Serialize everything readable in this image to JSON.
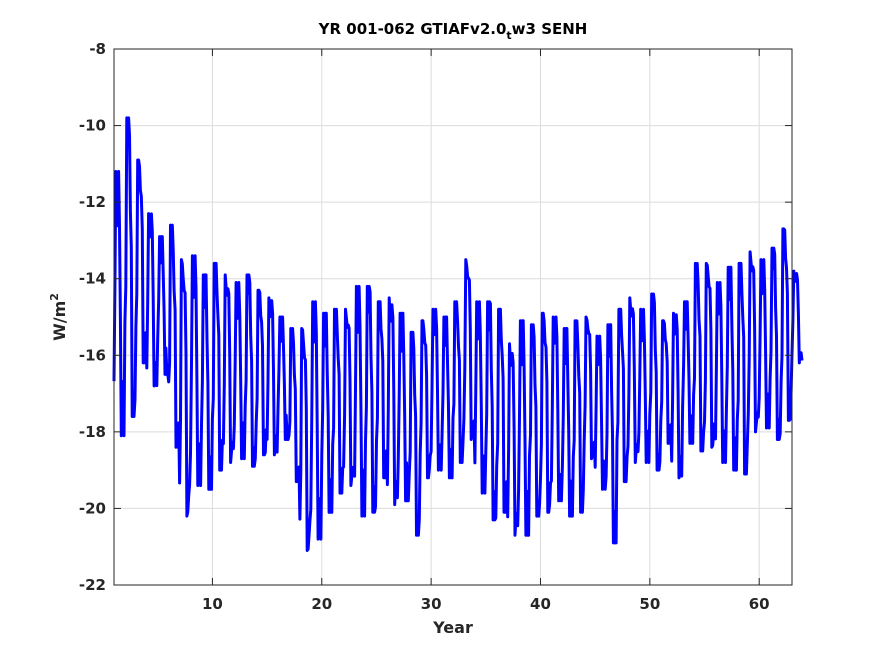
{
  "chart_data": {
    "type": "line",
    "title": "YR 001-062 GTIAFv2.0",
    "title_subscript": "t",
    "title_suffix": "w3 SENH",
    "xlabel": "Year",
    "ylabel_base": "W/m",
    "ylabel_sup": "2",
    "xlim": [
      1,
      63
    ],
    "ylim": [
      -22,
      -8
    ],
    "xticks": [
      10,
      20,
      30,
      40,
      50,
      60
    ],
    "yticks": [
      -8,
      -10,
      -12,
      -14,
      -16,
      -18,
      -20,
      -22
    ],
    "grid": true,
    "line_color": "#0000ff",
    "series": [
      {
        "annual_low": [
          -18.1,
          -17.6,
          -16.2,
          -16.8,
          -16.5,
          -18.4,
          -20.2,
          -19.4,
          -19.5,
          -19.0,
          -18.8,
          -18.7,
          -18.9,
          -18.6,
          -18.6,
          -18.2,
          -19.3,
          -21.1,
          -20.8,
          -20.1,
          -19.6,
          -19.4,
          -20.2,
          -20.1,
          -19.2,
          -19.9,
          -19.8,
          -20.7,
          -19.2,
          -19.0,
          -19.2,
          -18.8,
          -18.2,
          -19.6,
          -20.3,
          -20.1,
          -20.7,
          -20.7,
          -20.2,
          -20.1,
          -19.8,
          -20.2,
          -20.1,
          -18.7,
          -19.5,
          -20.9,
          -19.3,
          -18.8,
          -18.8,
          -19.0,
          -18.3,
          -19.2,
          -18.3,
          -18.5,
          -18.4,
          -18.8,
          -19.0,
          -19.1,
          -18.0,
          -17.9,
          -18.2,
          -17.7,
          -16.2
        ],
        "annual_high": [
          -11.2,
          -9.8,
          -10.9,
          -12.3,
          -12.9,
          -12.6,
          -13.5,
          -13.4,
          -13.9,
          -13.6,
          -13.9,
          -14.1,
          -13.9,
          -14.3,
          -14.5,
          -15.0,
          -15.3,
          -15.3,
          -14.6,
          -14.9,
          -14.8,
          -14.8,
          -14.2,
          -14.2,
          -14.6,
          -14.5,
          -14.9,
          -15.4,
          -15.1,
          -14.8,
          -15.0,
          -14.6,
          -13.5,
          -14.6,
          -14.6,
          -14.8,
          -15.7,
          -15.1,
          -15.2,
          -14.9,
          -15.0,
          -15.3,
          -15.1,
          -15.0,
          -15.5,
          -15.2,
          -14.8,
          -14.5,
          -14.8,
          -14.4,
          -15.1,
          -14.9,
          -14.6,
          -13.6,
          -13.6,
          -14.1,
          -13.7,
          -13.6,
          -13.3,
          -13.5,
          -13.2,
          -12.7,
          -13.8
        ]
      }
    ]
  }
}
